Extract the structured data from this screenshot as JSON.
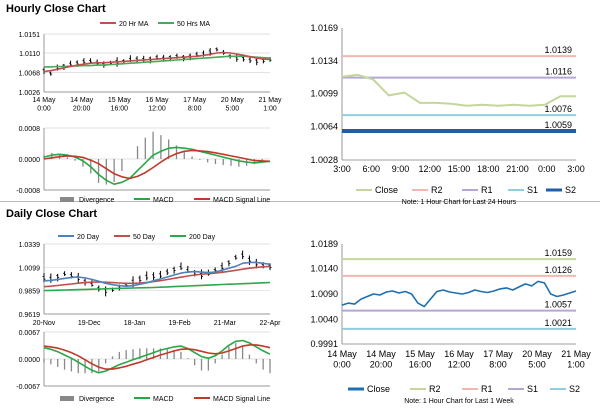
{
  "sections": {
    "hourly_title": "Hourly Close Chart",
    "daily_title": "Daily Close Chart"
  },
  "colors": {
    "ma20": "#c0504d",
    "ma50": "#4aa858",
    "ma20_daily": "#4f81bd",
    "ma200": "#2da84a",
    "price": "#000000",
    "macd": "#28a745",
    "signal": "#c0392b",
    "divergence": "#888888",
    "close_line_hourly": "#c3d69b",
    "close_line_daily": "#1f6fb2",
    "R2": "#f2b8b0",
    "R1": "#b4a7d6",
    "S1": "#93cddd",
    "S2": "#1f5fa8",
    "R2_daily": "#c3d69b",
    "R1_daily": "#f2b8b0",
    "S1_daily": "#b4a7d6",
    "S2_daily": "#93cddd",
    "grid": "#d9d9d9"
  },
  "chart_data": [
    {
      "id": "hourly_price",
      "type": "line",
      "legend": [
        "20 Hr MA",
        "50 Hrs MA"
      ],
      "ylim": [
        1.0026,
        1.0151
      ],
      "yticks": [
        "1.0151",
        "1.0110",
        "1.0068",
        "1.0026"
      ],
      "xticks": [
        "14 May\n0:00",
        "14 May\n20:00",
        "15 May\n16:00",
        "16 May\n12:00",
        "17 May\n8:00",
        "20 May\n5:00",
        "21 May\n1:00"
      ],
      "series": [
        {
          "name": "Price",
          "values": [
            1.0072,
            1.0066,
            1.0079,
            1.0083,
            1.0086,
            1.0089,
            1.0091,
            1.0092,
            1.0088,
            1.0085,
            1.0089,
            1.0091,
            1.0093,
            1.0095,
            1.0097,
            1.0096,
            1.0098,
            1.01,
            1.0099,
            1.0101,
            1.0103,
            1.0102,
            1.0104,
            1.0106,
            1.0108,
            1.0112,
            1.0118,
            1.011,
            1.0104,
            1.0099,
            1.0097,
            1.0095,
            1.0093,
            1.0094,
            1.0096
          ]
        },
        {
          "name": "20 Hr MA",
          "values": [
            1.007,
            1.0072,
            1.0075,
            1.0078,
            1.0081,
            1.0084,
            1.0086,
            1.0088,
            1.0089,
            1.0089,
            1.009,
            1.0091,
            1.0092,
            1.0093,
            1.0094,
            1.0095,
            1.0096,
            1.0097,
            1.0098,
            1.0099,
            1.01,
            1.0101,
            1.0102,
            1.0103,
            1.0105,
            1.0107,
            1.011,
            1.0111,
            1.011,
            1.0108,
            1.0105,
            1.0102,
            1.0099,
            1.0097,
            1.0096
          ]
        },
        {
          "name": "50 Hrs MA",
          "values": [
            1.008,
            1.008,
            1.0081,
            1.0081,
            1.0082,
            1.0082,
            1.0083,
            1.0083,
            1.0084,
            1.0084,
            1.0085,
            1.0086,
            1.0087,
            1.0088,
            1.0089,
            1.009,
            1.0091,
            1.0092,
            1.0093,
            1.0094,
            1.0095,
            1.0096,
            1.0097,
            1.0098,
            1.0099,
            1.01,
            1.0101,
            1.0102,
            1.0103,
            1.0103,
            1.0103,
            1.0102,
            1.0101,
            1.01,
            1.0099
          ]
        }
      ]
    },
    {
      "id": "hourly_macd",
      "type": "line",
      "legend": [
        "Divergence",
        "MACD",
        "MACD Signal Line"
      ],
      "ylim": [
        -0.0008,
        0.0008
      ],
      "yticks": [
        "0.0008",
        "0.0000",
        "-0.0008"
      ],
      "series": [
        {
          "name": "MACD",
          "values": [
            5e-05,
            0.0001,
            0.00012,
            0.0001,
            5e-05,
            -5e-05,
            -0.0002,
            -0.0004,
            -0.00055,
            -0.00065,
            -0.0006,
            -0.0005,
            -0.0003,
            -0.0001,
            0.0001,
            0.0002,
            0.00028,
            0.0003,
            0.00028,
            0.00025,
            0.0002,
            0.00015,
            0.0001,
            5e-05,
            0.0,
            -5e-05,
            -8e-05,
            -0.0001,
            -8e-05,
            -6e-05
          ]
        },
        {
          "name": "MACD Signal Line",
          "values": [
            0.0,
            3e-05,
            6e-05,
            8e-05,
            7e-05,
            4e-05,
            -3e-05,
            -0.00012,
            -0.00025,
            -0.00038,
            -0.00046,
            -0.0005,
            -0.00045,
            -0.00035,
            -0.00022,
            -8e-05,
            5e-05,
            0.00014,
            0.0002,
            0.00022,
            0.00021,
            0.00019,
            0.00016,
            0.00012,
            8e-05,
            4e-05,
            0.0,
            -4e-05,
            -5e-05,
            -6e-05
          ]
        }
      ]
    },
    {
      "id": "hourly_levels",
      "type": "line",
      "ylim": [
        1.0028,
        1.0169
      ],
      "yticks": [
        "1.0169",
        "1.0134",
        "1.0099",
        "1.0064",
        "1.0028"
      ],
      "xticks": [
        "3:00",
        "6:00",
        "9:00",
        "12:00",
        "15:00",
        "18:00",
        "21:00",
        "0:00",
        "3:00"
      ],
      "series": [
        {
          "name": "Close",
          "values": [
            1.0117,
            1.0119,
            1.0114,
            1.0097,
            1.01,
            1.0089,
            1.0089,
            1.0088,
            1.0086,
            1.0087,
            1.0086,
            1.0087,
            1.0086,
            1.0087,
            1.0096,
            1.0096
          ]
        },
        {
          "name": "R2",
          "value": 1.0139,
          "label": "1.0139"
        },
        {
          "name": "R1",
          "value": 1.0116,
          "label": "1.0116"
        },
        {
          "name": "S1",
          "value": 1.0076,
          "label": "1.0076"
        },
        {
          "name": "S2",
          "value": 1.0059,
          "label": "1.0059"
        }
      ],
      "legend": [
        "Close",
        "R2",
        "R1",
        "S1",
        "S2"
      ],
      "note": "Note: 1 Hour Chart for Last 24 Hours"
    },
    {
      "id": "daily_price",
      "type": "line",
      "legend": [
        "20 Day",
        "50 Day",
        "200 Day"
      ],
      "ylim": [
        0.9619,
        1.0339
      ],
      "yticks": [
        "1.0339",
        "1.0099",
        "0.9859",
        "0.9619"
      ],
      "xticks": [
        "20-Nov",
        "19-Dec",
        "18-Jan",
        "19-Feb",
        "21-Mar",
        "22-Apr"
      ],
      "series": [
        {
          "name": "Price",
          "values": [
            0.999,
            0.998,
            1.001,
            1.003,
            1.0015,
            0.999,
            0.996,
            0.992,
            0.988,
            0.986,
            0.987,
            0.99,
            0.992,
            0.995,
            0.998,
            1.0,
            1.001,
            1.002,
            1.005,
            1.008,
            1.009,
            1.006,
            1.004,
            1.002,
            1.003,
            1.007,
            1.01,
            1.015,
            1.02,
            1.022,
            1.018,
            1.014,
            1.012,
            1.011
          ]
        },
        {
          "name": "20 Day",
          "values": [
            0.996,
            0.9965,
            0.9975,
            0.9985,
            0.9995,
            1.0,
            0.999,
            0.9975,
            0.9955,
            0.9935,
            0.992,
            0.991,
            0.9905,
            0.991,
            0.9925,
            0.994,
            0.996,
            0.998,
            1.0,
            1.002,
            1.004,
            1.005,
            1.0055,
            1.005,
            1.0045,
            1.005,
            1.007,
            1.009,
            1.011,
            1.014,
            1.015,
            1.015,
            1.014,
            1.013
          ]
        },
        {
          "name": "50 Day",
          "values": [
            0.99,
            0.9905,
            0.9912,
            0.992,
            0.9928,
            0.9936,
            0.9942,
            0.9946,
            0.9948,
            0.9946,
            0.9942,
            0.9938,
            0.9935,
            0.9935,
            0.9938,
            0.9944,
            0.9952,
            0.9962,
            0.9974,
            0.9986,
            0.9998,
            1.001,
            1.002,
            1.0028,
            1.0034,
            1.004,
            1.0048,
            1.0058,
            1.0068,
            1.008,
            1.009,
            1.0098,
            1.0104,
            1.0108
          ]
        },
        {
          "name": "200 Day",
          "values": [
            0.986,
            0.9862,
            0.9864,
            0.9866,
            0.9868,
            0.987,
            0.9872,
            0.9874,
            0.9876,
            0.9878,
            0.988,
            0.9882,
            0.9884,
            0.9886,
            0.9888,
            0.989,
            0.9892,
            0.9895,
            0.9898,
            0.9901,
            0.9904,
            0.9907,
            0.991,
            0.9913,
            0.9916,
            0.9919,
            0.9922,
            0.9925,
            0.9928,
            0.9931,
            0.9934,
            0.9937,
            0.994,
            0.9943
          ]
        }
      ]
    },
    {
      "id": "daily_macd",
      "type": "line",
      "legend": [
        "Divergence",
        "MACD",
        "MACD Signal Line"
      ],
      "ylim": [
        -0.0067,
        0.0067
      ],
      "yticks": [
        "0.0067",
        "0.0000",
        "-0.0067"
      ],
      "series": [
        {
          "name": "MACD",
          "values": [
            0.0028,
            0.0024,
            0.0018,
            0.001,
            0.0002,
            -0.0008,
            -0.0018,
            -0.0028,
            -0.0034,
            -0.003,
            -0.0022,
            -0.0014,
            -0.0008,
            -0.0002,
            0.0004,
            0.001,
            0.0016,
            0.0022,
            0.0026,
            0.003,
            0.0032,
            0.0026,
            0.0016,
            0.0006,
            0.0002,
            0.0008,
            0.002,
            0.0034,
            0.0044,
            0.0046,
            0.004,
            0.003,
            0.002,
            0.0012
          ]
        },
        {
          "name": "MACD Signal Line",
          "values": [
            0.0032,
            0.003,
            0.0027,
            0.0022,
            0.0016,
            0.0008,
            -0.0002,
            -0.0012,
            -0.002,
            -0.0025,
            -0.0025,
            -0.0022,
            -0.0018,
            -0.0013,
            -0.0008,
            -0.0002,
            0.0004,
            0.001,
            0.0015,
            0.002,
            0.0024,
            0.0025,
            0.0023,
            0.0019,
            0.0015,
            0.0013,
            0.0015,
            0.002,
            0.0026,
            0.0032,
            0.0035,
            0.0035,
            0.0032,
            0.0028
          ]
        }
      ]
    },
    {
      "id": "daily_levels",
      "type": "line",
      "ylim": [
        0.9991,
        1.0189
      ],
      "yticks": [
        "1.0189",
        "1.0140",
        "1.0090",
        "1.0040",
        "0.9991"
      ],
      "xticks": [
        "14 May\n0:00",
        "14 May\n20:00",
        "15 May\n16:00",
        "16 May\n12:00",
        "17 May\n8:00",
        "20 May\n5:00",
        "21 May\n1:00"
      ],
      "series": [
        {
          "name": "Close",
          "values": [
            1.0068,
            1.0072,
            1.007,
            1.008,
            1.0085,
            1.009,
            1.0088,
            1.0094,
            1.0096,
            1.0092,
            1.0095,
            1.009,
            1.0072,
            1.0065,
            1.008,
            1.0095,
            1.0098,
            1.0094,
            1.0092,
            1.009,
            1.0093,
            1.0098,
            1.0095,
            1.0093,
            1.0096,
            1.01,
            1.0102,
            1.0098,
            1.0104,
            1.011,
            1.0106,
            1.0115,
            1.0112,
            1.009,
            1.0085,
            1.0088,
            1.0092,
            1.0096
          ]
        },
        {
          "name": "R2",
          "value": 1.0159,
          "label": "1.0159"
        },
        {
          "name": "R1",
          "value": 1.0126,
          "label": "1.0126"
        },
        {
          "name": "S1",
          "value": 1.0057,
          "label": "1.0057"
        },
        {
          "name": "S2",
          "value": 1.0021,
          "label": "1.0021"
        }
      ],
      "legend": [
        "Close",
        "R2",
        "R1",
        "S1",
        "S2"
      ],
      "note": "Note: 1 Hour Chart for Last 1 Week"
    }
  ]
}
